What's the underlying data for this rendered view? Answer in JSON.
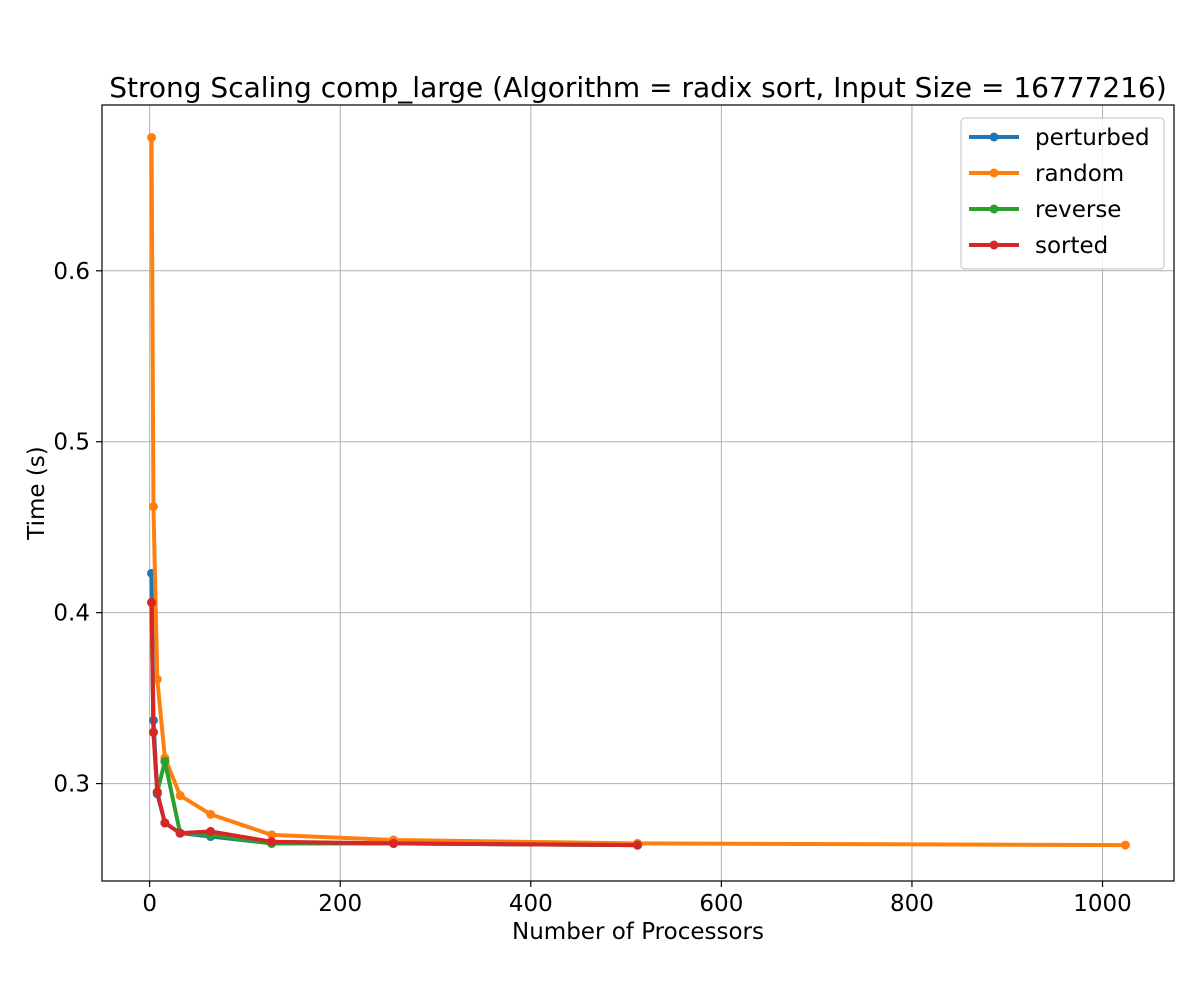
{
  "chart_data": {
    "type": "line",
    "title": "Strong Scaling comp_large (Algorithm = radix sort, Input Size = 16777216)",
    "xlabel": "Number of Processors",
    "ylabel": "Time (s)",
    "xlim": [
      -50,
      1075
    ],
    "ylim": [
      0.243,
      0.697
    ],
    "xticks": [
      0,
      200,
      400,
      600,
      800,
      1000
    ],
    "yticks": [
      0.3,
      0.4,
      0.5,
      0.6
    ],
    "xtick_labels": [
      "0",
      "200",
      "400",
      "600",
      "800",
      "1000"
    ],
    "ytick_labels": [
      "0.3",
      "0.4",
      "0.5",
      "0.6"
    ],
    "grid": true,
    "legend_position": "top-right",
    "series": [
      {
        "name": "perturbed",
        "color": "#1f77b4",
        "x": [
          2,
          4,
          8,
          16,
          32,
          64,
          128,
          256,
          512
        ],
        "y": [
          0.423,
          0.337,
          0.294,
          0.277,
          0.271,
          0.269,
          0.265,
          0.265,
          0.264
        ]
      },
      {
        "name": "random",
        "color": "#ff7f0e",
        "x": [
          2,
          4,
          8,
          16,
          32,
          64,
          128,
          256,
          512,
          1024
        ],
        "y": [
          0.678,
          0.462,
          0.361,
          0.315,
          0.293,
          0.282,
          0.27,
          0.267,
          0.265,
          0.264
        ]
      },
      {
        "name": "reverse",
        "color": "#2ca02c",
        "x": [
          2,
          4,
          8,
          16,
          32,
          64,
          128,
          256,
          512
        ],
        "y": [
          0.406,
          0.33,
          0.295,
          0.313,
          0.271,
          0.27,
          0.265,
          0.265,
          0.264
        ]
      },
      {
        "name": "sorted",
        "color": "#d62728",
        "x": [
          2,
          4,
          8,
          16,
          32,
          64,
          128,
          256,
          512
        ],
        "y": [
          0.406,
          0.33,
          0.295,
          0.277,
          0.271,
          0.272,
          0.266,
          0.265,
          0.264
        ]
      }
    ]
  }
}
